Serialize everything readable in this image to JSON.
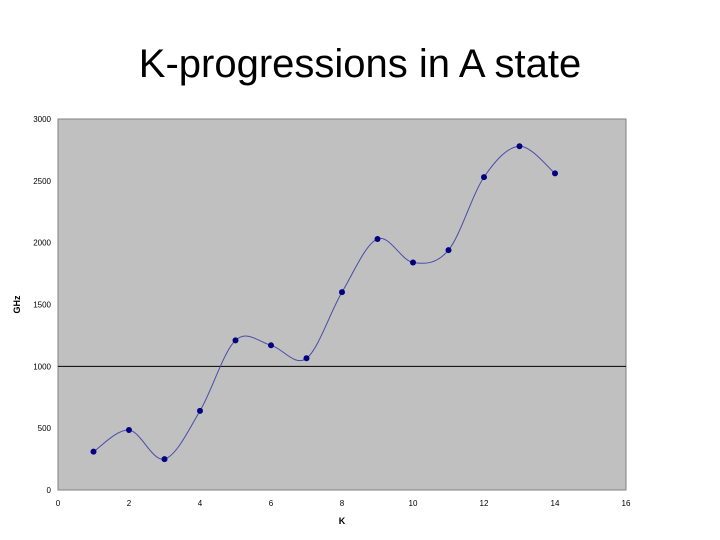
{
  "chart_data": {
    "type": "line",
    "title": "K-progressions in A state",
    "xlabel": "K",
    "ylabel": "GHz",
    "xlim": [
      0,
      16
    ],
    "ylim": [
      0,
      3000
    ],
    "x_ticks": [
      0,
      2,
      4,
      6,
      8,
      10,
      12,
      14,
      16
    ],
    "y_ticks": [
      0,
      500,
      1000,
      1500,
      2000,
      2500,
      3000
    ],
    "grid": false,
    "reference_line": 1000,
    "smoothed": true,
    "marker": "circle",
    "colors": {
      "plot_bg": "#c0c0c0",
      "series": "#000080",
      "line": "#4a4aa8"
    },
    "series": [
      {
        "x": [
          1,
          2,
          3,
          4,
          5,
          6,
          7,
          8,
          9,
          10,
          11,
          12,
          13,
          14
        ],
        "y": [
          310,
          485,
          250,
          640,
          1210,
          1170,
          1065,
          1600,
          2030,
          1840,
          1940,
          2530,
          2780,
          2560
        ]
      }
    ]
  }
}
